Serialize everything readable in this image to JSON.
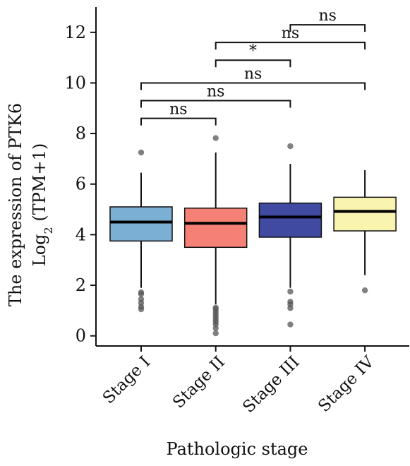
{
  "chart_data": {
    "type": "box",
    "ylabel_line1": "The expression of PTK6",
    "ylabel_line2_pre": "Log",
    "ylabel_line2_sub": "2",
    "ylabel_line2_post": " (TPM+1)",
    "xlabel": "Pathologic stage",
    "ylim": [
      -0.4,
      13.0
    ],
    "yticks": [
      "0",
      "2",
      "4",
      "6",
      "8",
      "10",
      "12"
    ],
    "categories": [
      "Stage I",
      "Stage II",
      "Stage III",
      "Stage IV"
    ],
    "boxes": [
      {
        "name": "Stage I",
        "color": "#7bafd4",
        "q1": 3.75,
        "median": 4.5,
        "q3": 5.1,
        "whisker_low": 1.9,
        "whisker_high": 6.45,
        "outliers": [
          1.05,
          1.15,
          1.3,
          1.45,
          1.65,
          1.72,
          7.25
        ]
      },
      {
        "name": "Stage II",
        "color": "#f58176",
        "q1": 3.5,
        "median": 4.45,
        "q3": 5.05,
        "whisker_low": 1.25,
        "whisker_high": 7.25,
        "outliers": [
          0.1,
          0.3,
          0.45,
          0.55,
          0.65,
          0.75,
          0.85,
          0.95,
          1.05,
          1.12,
          7.82
        ]
      },
      {
        "name": "Stage III",
        "color": "#3f4aa0",
        "q1": 3.9,
        "median": 4.7,
        "q3": 5.25,
        "whisker_low": 1.9,
        "whisker_high": 6.8,
        "outliers": [
          0.45,
          1.1,
          1.25,
          1.35,
          1.75,
          7.5
        ]
      },
      {
        "name": "Stage IV",
        "color": "#f9f4b0",
        "q1": 4.15,
        "median": 4.92,
        "q3": 5.48,
        "whisker_low": 2.4,
        "whisker_high": 6.55,
        "outliers": [
          1.8
        ]
      }
    ],
    "comparisons": [
      {
        "from": 0,
        "to": 1,
        "y": 8.6,
        "label": "ns"
      },
      {
        "from": 0,
        "to": 2,
        "y": 9.3,
        "label": "ns"
      },
      {
        "from": 0,
        "to": 3,
        "y": 10.0,
        "label": "ns"
      },
      {
        "from": 1,
        "to": 2,
        "y": 10.9,
        "label": "*"
      },
      {
        "from": 1,
        "to": 3,
        "y": 11.6,
        "label": "ns"
      },
      {
        "from": 2,
        "to": 3,
        "y": 12.3,
        "label": "ns"
      }
    ]
  }
}
